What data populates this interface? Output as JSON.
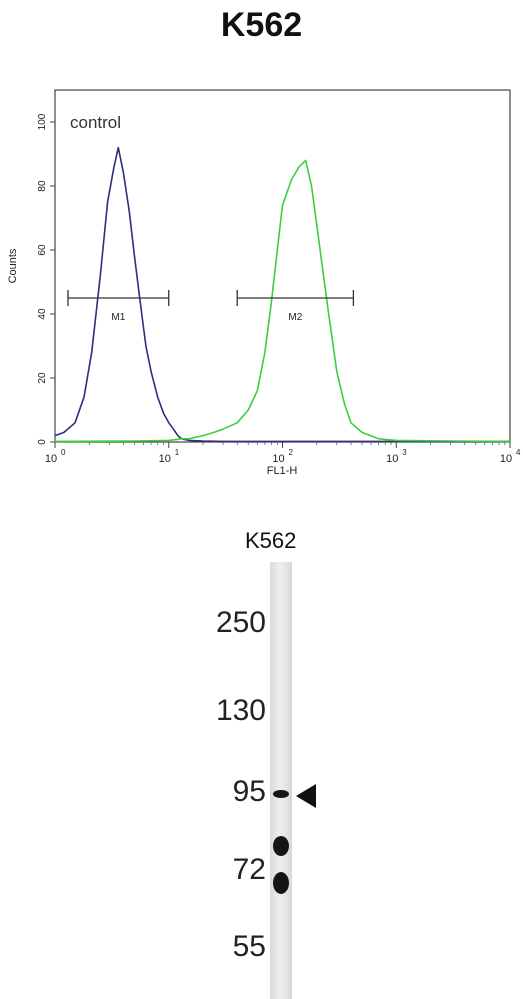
{
  "title": "K562",
  "chart_data": [
    {
      "type": "line",
      "xlabel": "FL1-H",
      "ylabel": "Counts",
      "x_scale": "log",
      "xlim": [
        1,
        10000
      ],
      "ylim": [
        0,
        110
      ],
      "x_ticks": [
        {
          "value": 1,
          "base": "10",
          "exp": "0"
        },
        {
          "value": 10,
          "base": "10",
          "exp": "1"
        },
        {
          "value": 100,
          "base": "10",
          "exp": "2"
        },
        {
          "value": 1000,
          "base": "10",
          "exp": "3"
        },
        {
          "value": 10000,
          "base": "10",
          "exp": "4"
        }
      ],
      "y_ticks": [
        0,
        20,
        40,
        60,
        80,
        100
      ],
      "annotation": "control",
      "colors": {
        "control": "#2b2f7e",
        "sample": "#3ccf3c"
      },
      "series": [
        {
          "key": "control",
          "x": [
            1,
            1.2,
            1.5,
            1.8,
            2.1,
            2.5,
            2.9,
            3.3,
            3.6,
            4.0,
            4.5,
            5.0,
            5.6,
            6.3,
            7.0,
            8.0,
            9.0,
            10,
            11,
            12,
            13,
            15,
            20,
            30,
            50,
            100,
            300,
            1000,
            3000,
            10000
          ],
          "y": [
            2,
            3,
            6,
            14,
            28,
            52,
            75,
            86,
            92,
            84,
            72,
            58,
            44,
            30,
            22,
            14,
            9,
            6,
            4,
            2,
            1,
            0.5,
            0.3,
            0.2,
            0.2,
            0.2,
            0.2,
            0.2,
            0.2,
            0.2
          ]
        },
        {
          "key": "sample",
          "x": [
            1,
            5,
            10,
            13,
            15,
            20,
            25,
            30,
            40,
            50,
            60,
            70,
            80,
            90,
            100,
            120,
            140,
            160,
            180,
            200,
            250,
            300,
            350,
            400,
            500,
            700,
            1000,
            3000,
            10000
          ],
          "y": [
            0.2,
            0.3,
            0.5,
            1,
            1,
            2,
            3,
            4,
            6,
            10,
            16,
            28,
            44,
            60,
            74,
            82,
            86,
            88,
            80,
            68,
            42,
            22,
            12,
            6,
            3,
            1,
            0.5,
            0.3,
            0.2
          ]
        }
      ],
      "markers": [
        {
          "label": "M1",
          "x_start": 1.3,
          "x_end": 10,
          "y": 45
        },
        {
          "label": "M2",
          "x_start": 40,
          "x_end": 420,
          "y": 45
        }
      ]
    },
    {
      "type": "table",
      "lane_label": "K562",
      "mw_markers": [
        "250",
        "130",
        "95",
        "72",
        "55"
      ],
      "bands": [
        {
          "near_marker": "95",
          "arrow": true
        },
        {
          "between": [
            "95",
            "72"
          ]
        },
        {
          "between": [
            "72",
            "55"
          ]
        }
      ]
    }
  ]
}
